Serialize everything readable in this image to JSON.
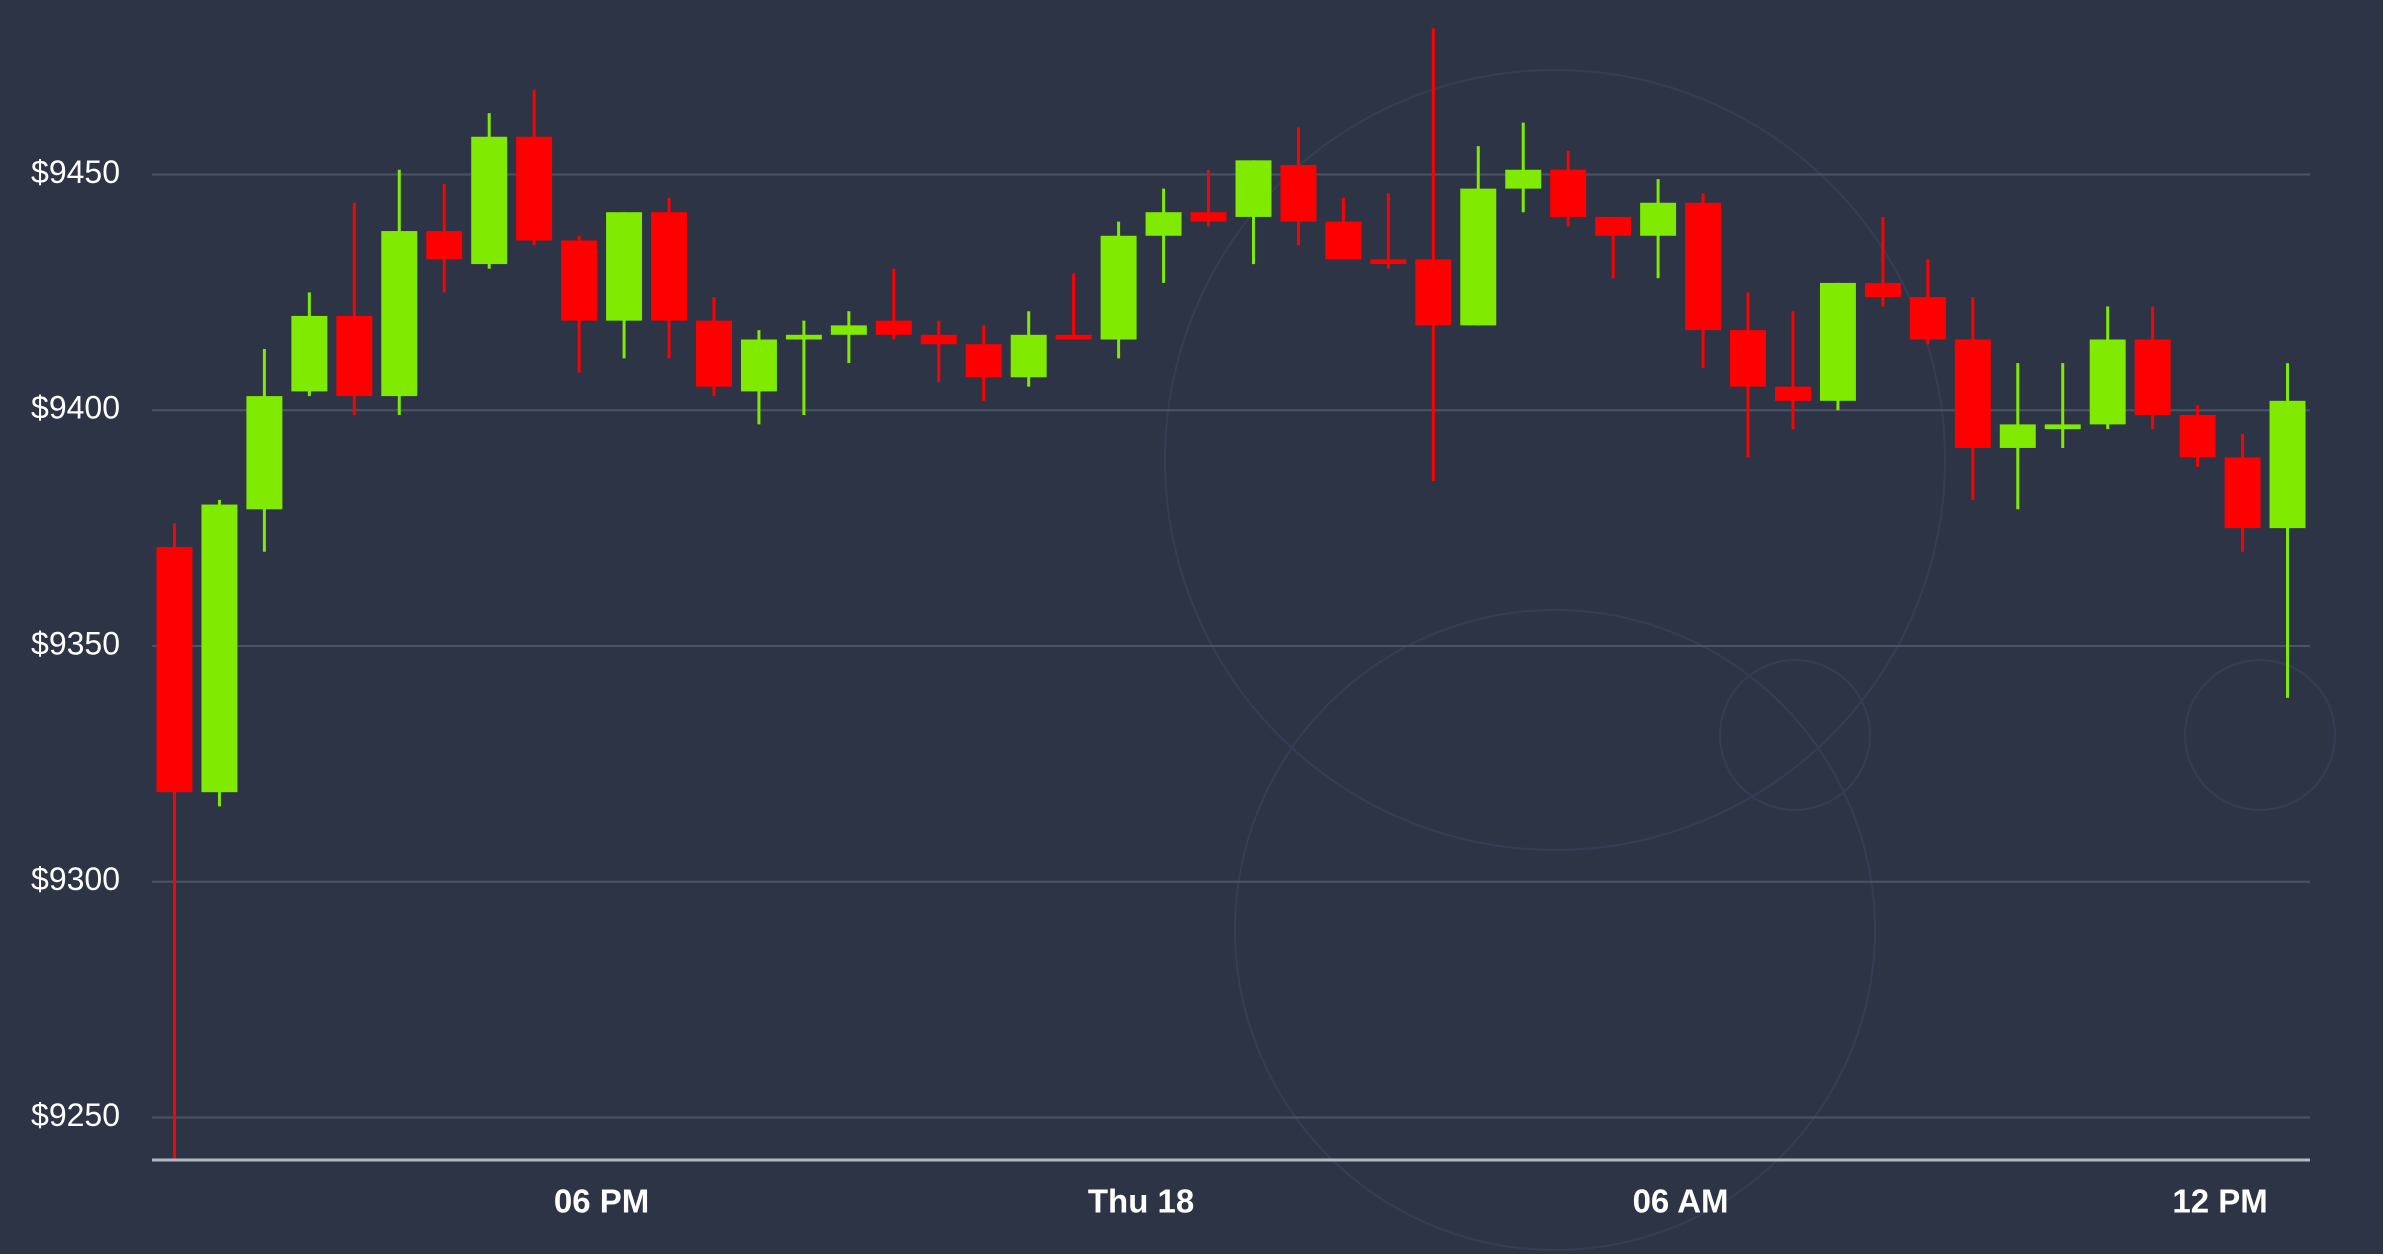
{
  "chart_data": {
    "type": "candlestick",
    "up_color": "#80ea00",
    "down_color": "#ff0000",
    "grid": true,
    "ylim": [
      9241,
      9487
    ],
    "yticks": [
      {
        "value": 9250,
        "label": "$9250"
      },
      {
        "value": 9300,
        "label": "$9300"
      },
      {
        "value": 9350,
        "label": "$9350"
      },
      {
        "value": 9400,
        "label": "$9400"
      },
      {
        "value": 9450,
        "label": "$9450"
      }
    ],
    "xlim": [
      -0.5,
      47.5
    ],
    "xticks": [
      {
        "value": 9.5,
        "label": "06 PM"
      },
      {
        "value": 21.5,
        "label": "Thu 18"
      },
      {
        "value": 33.5,
        "label": "06 AM"
      },
      {
        "value": 45.5,
        "label": "12 PM"
      }
    ],
    "open": [
      9371,
      9319,
      9379,
      9404,
      9420,
      9403,
      9438,
      9431,
      9458,
      9436,
      9419,
      9442,
      9419,
      9404,
      9415,
      9416,
      9419,
      9416,
      9414,
      9407,
      9416,
      9415,
      9437,
      9442,
      9441,
      9452,
      9440,
      9432,
      9432,
      9418,
      9447,
      9451,
      9441,
      9437,
      9444,
      9417,
      9405,
      9402,
      9427,
      9424,
      9415,
      9392,
      9396,
      9397,
      9415,
      9399,
      9390,
      9375
    ],
    "high": [
      9376,
      9381,
      9413,
      9425,
      9444,
      9451,
      9448,
      9463,
      9468,
      9437,
      9442,
      9445,
      9424,
      9417,
      9419,
      9421,
      9430,
      9419,
      9418,
      9421,
      9429,
      9440,
      9447,
      9451,
      9453,
      9460,
      9445,
      9446,
      9481,
      9456,
      9461,
      9455,
      9441,
      9449,
      9446,
      9425,
      9421,
      9427,
      9441,
      9432,
      9424,
      9410,
      9410,
      9422,
      9422,
      9401,
      9395,
      9410
    ],
    "low": [
      9241,
      9316,
      9370,
      9403,
      9399,
      9399,
      9425,
      9430,
      9435,
      9408,
      9411,
      9411,
      9403,
      9397,
      9399,
      9410,
      9415,
      9406,
      9402,
      9405,
      9415,
      9411,
      9427,
      9439,
      9431,
      9435,
      9432,
      9430,
      9385,
      9418,
      9442,
      9439,
      9428,
      9428,
      9409,
      9390,
      9396,
      9400,
      9422,
      9414,
      9381,
      9379,
      9392,
      9396,
      9396,
      9388,
      9370,
      9339
    ],
    "close": [
      9319,
      9380,
      9403,
      9420,
      9403,
      9438,
      9432,
      9458,
      9436,
      9419,
      9442,
      9419,
      9405,
      9415,
      9416,
      9418,
      9416,
      9414,
      9407,
      9416,
      9415,
      9437,
      9442,
      9440,
      9453,
      9440,
      9432,
      9431,
      9418,
      9447,
      9451,
      9441,
      9437,
      9444,
      9417,
      9405,
      9402,
      9427,
      9424,
      9415,
      9392,
      9397,
      9397,
      9415,
      9399,
      9390,
      9375,
      9402
    ]
  }
}
